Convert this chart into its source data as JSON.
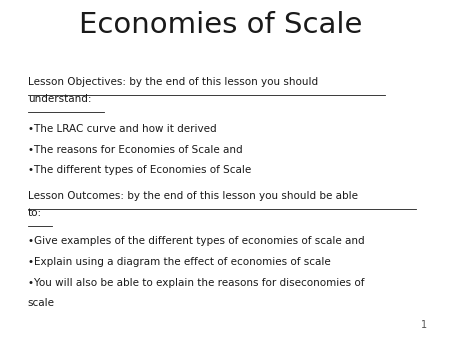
{
  "title": "Economies of Scale",
  "title_fontsize": 21,
  "background_color": "#ffffff",
  "text_color": "#1a1a1a",
  "page_number": "1",
  "obj_heading_line1": "Lesson Objectives: by the end of this lesson you should",
  "obj_heading_line2": "understand:",
  "obj_bullet1": "•The LRAC curve and how it derived",
  "obj_bullet2": "•The reasons for Economies of Scale and",
  "obj_bullet3": "•The different types of Economies of Scale",
  "out_heading_line1": "Lesson Outcomes: by the end of this lesson you should be able",
  "out_heading_line2": "to:",
  "out_bullet1": "•Give examples of the different types of economies of scale and",
  "out_bullet2": "•Explain using a diagram the effect of economies of scale",
  "out_bullet3": "•You will also be able to explain the reasons for diseconomies of",
  "out_bullet4": "scale",
  "body_fontsize": 7.5,
  "underline_color": "#1a1a1a",
  "underline_lw": 0.6,
  "page_num_fontsize": 7,
  "page_num_color": "#555555"
}
